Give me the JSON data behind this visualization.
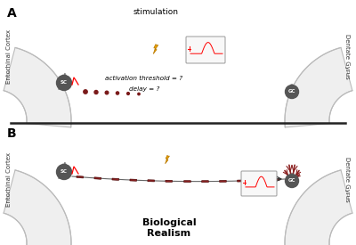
{
  "fig_width": 4.0,
  "fig_height": 2.75,
  "dpi": 100,
  "bg_color": "#ffffff",
  "panel_A_label": "A",
  "panel_B_label": "B",
  "entorhinal_label": "Entorhinal Cortex",
  "dentate_label": "Dentate Gyrus",
  "sc_label": "SC",
  "gc_label": "GC",
  "stimulation_label": "stimulation",
  "activation_label": "activation threshold = ?",
  "delay_label": "delay = ?",
  "bio_realism_label": "Biological\nRealism",
  "neuron_color": "#777777",
  "soma_dark": "#555555",
  "axon_red": "#8B2020",
  "dot_color": "#7a1a1a",
  "lightning_color": "#E8A000",
  "lightning_dark": "#b87800"
}
